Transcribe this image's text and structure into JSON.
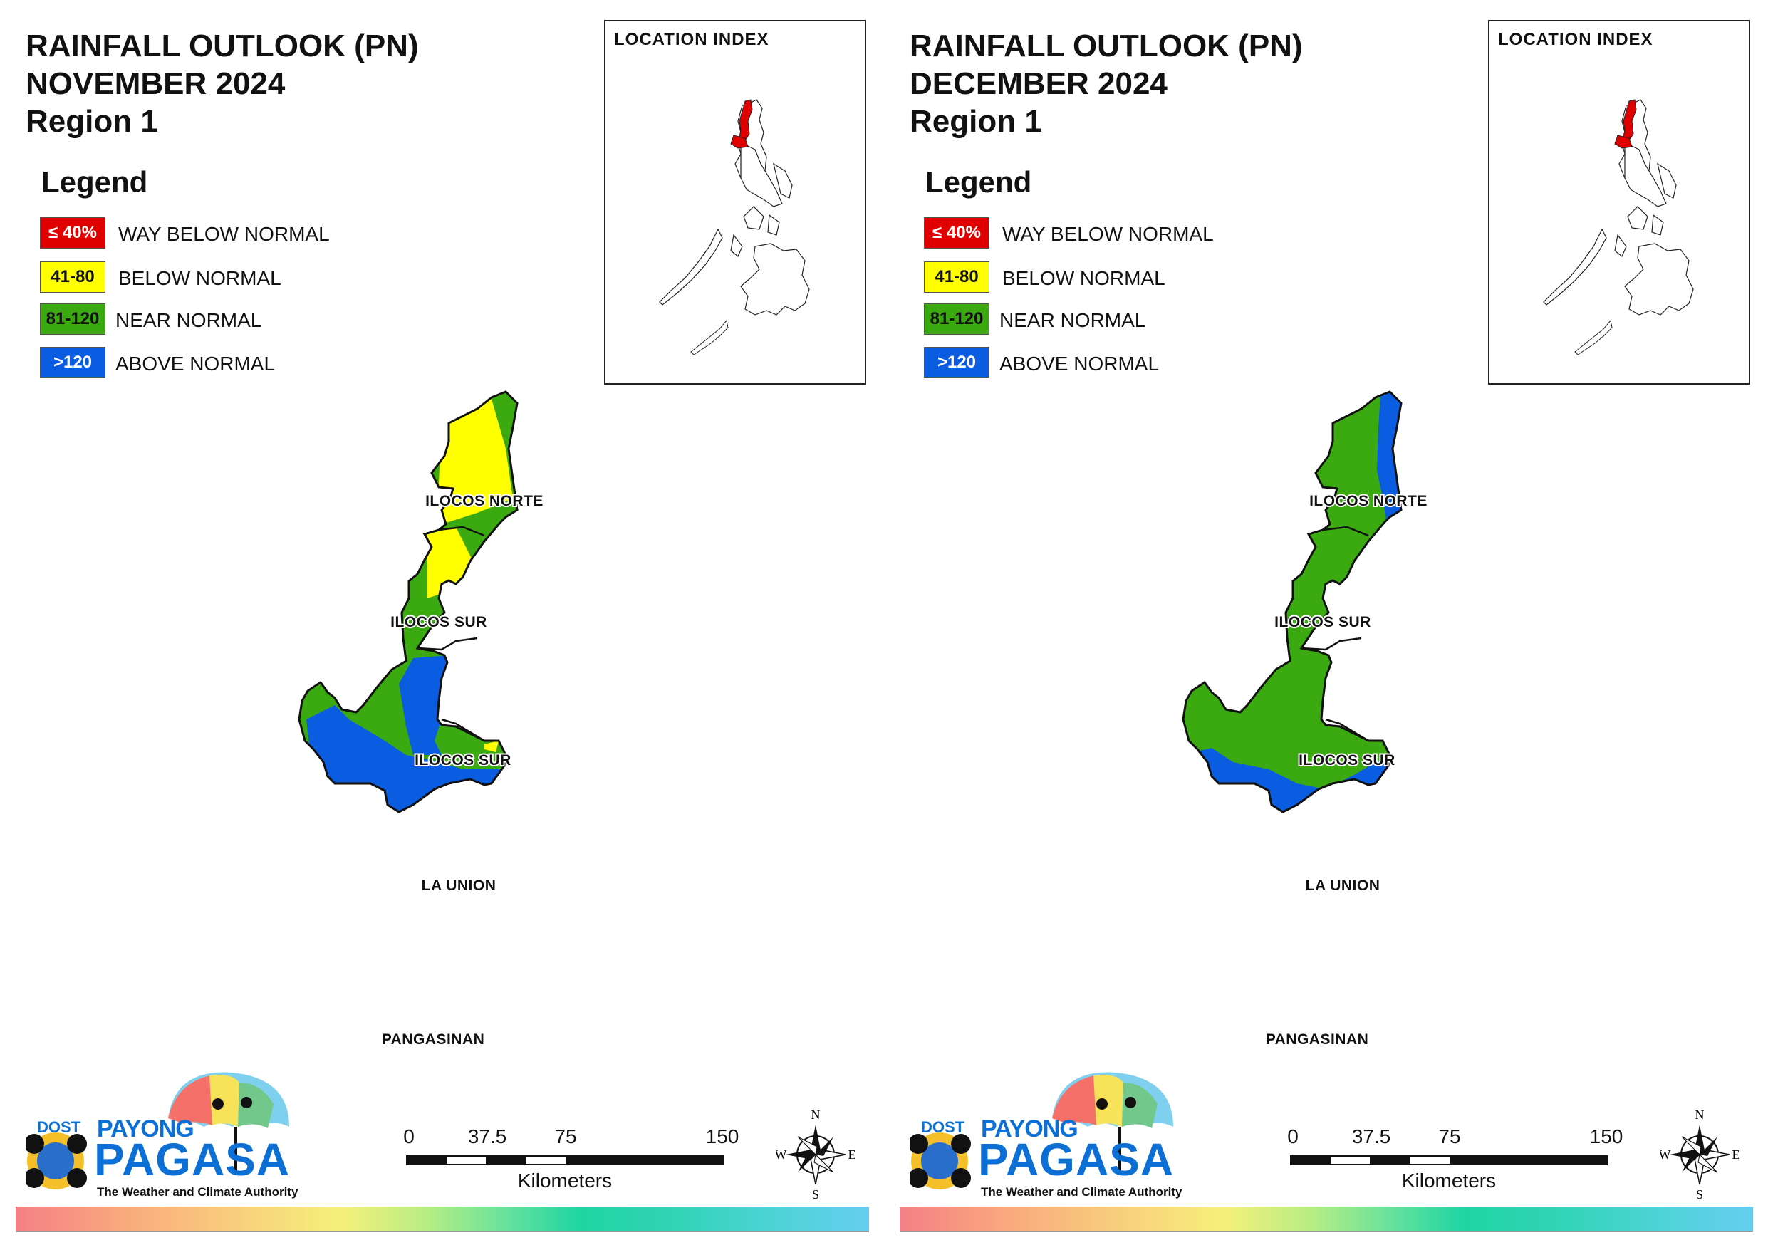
{
  "panels": [
    {
      "title_line1": "RAINFALL OUTLOOK (PN)",
      "title_line2": "NOVEMBER 2024",
      "title_line3": "Region 1",
      "legend_heading": "Legend",
      "legend": [
        {
          "range": "≤ 40%",
          "label": "WAY BELOW NORMAL",
          "color": "#e00000",
          "text_color": "#ffffff"
        },
        {
          "range": "41-80",
          "label": "BELOW NORMAL",
          "color": "#ffff00",
          "text_color": "#111111"
        },
        {
          "range": "81-120",
          "label": "NEAR NORMAL",
          "color": "#3aaa10",
          "text_color": "#111111"
        },
        {
          "range": ">120",
          "label": "ABOVE NORMAL",
          "color": "#0a5ce0",
          "text_color": "#ffffff"
        }
      ],
      "location_index_title": "LOCATION INDEX",
      "provinces": [
        "ILOCOS NORTE",
        "ILOCOS SUR",
        "ILOCOS SUR",
        "LA UNION",
        "PANGASINAN"
      ],
      "scale_labels": [
        "0",
        "37.5",
        "75",
        "150"
      ],
      "scale_unit": "Kilometers",
      "compass": {
        "n": "N",
        "e": "E",
        "s": "S",
        "w": "W"
      },
      "logo": {
        "dost": "DOST",
        "payong": "PAYONG",
        "pagasa": "PAGASA",
        "tagline": "The Weather and Climate Authority"
      }
    },
    {
      "title_line1": "RAINFALL OUTLOOK (PN)",
      "title_line2": "DECEMBER 2024",
      "title_line3": "Region 1",
      "legend_heading": "Legend",
      "legend": [
        {
          "range": "≤ 40%",
          "label": "WAY BELOW NORMAL",
          "color": "#e00000",
          "text_color": "#ffffff"
        },
        {
          "range": "41-80",
          "label": "BELOW NORMAL",
          "color": "#ffff00",
          "text_color": "#111111"
        },
        {
          "range": "81-120",
          "label": "NEAR NORMAL",
          "color": "#3aaa10",
          "text_color": "#111111"
        },
        {
          "range": ">120",
          "label": "ABOVE NORMAL",
          "color": "#0a5ce0",
          "text_color": "#ffffff"
        }
      ],
      "location_index_title": "LOCATION INDEX",
      "provinces": [
        "ILOCOS NORTE",
        "ILOCOS SUR",
        "ILOCOS SUR",
        "LA UNION",
        "PANGASINAN"
      ],
      "scale_labels": [
        "0",
        "37.5",
        "75",
        "150"
      ],
      "scale_unit": "Kilometers",
      "compass": {
        "n": "N",
        "e": "E",
        "s": "S",
        "w": "W"
      },
      "logo": {
        "dost": "DOST",
        "payong": "PAYONG",
        "pagasa": "PAGASA",
        "tagline": "The Weather and Climate Authority"
      }
    }
  ],
  "colors": {
    "highlight_region": "#e00000",
    "yellow": "#ffff00",
    "green": "#3aaa10",
    "blue": "#0a5ce0"
  }
}
